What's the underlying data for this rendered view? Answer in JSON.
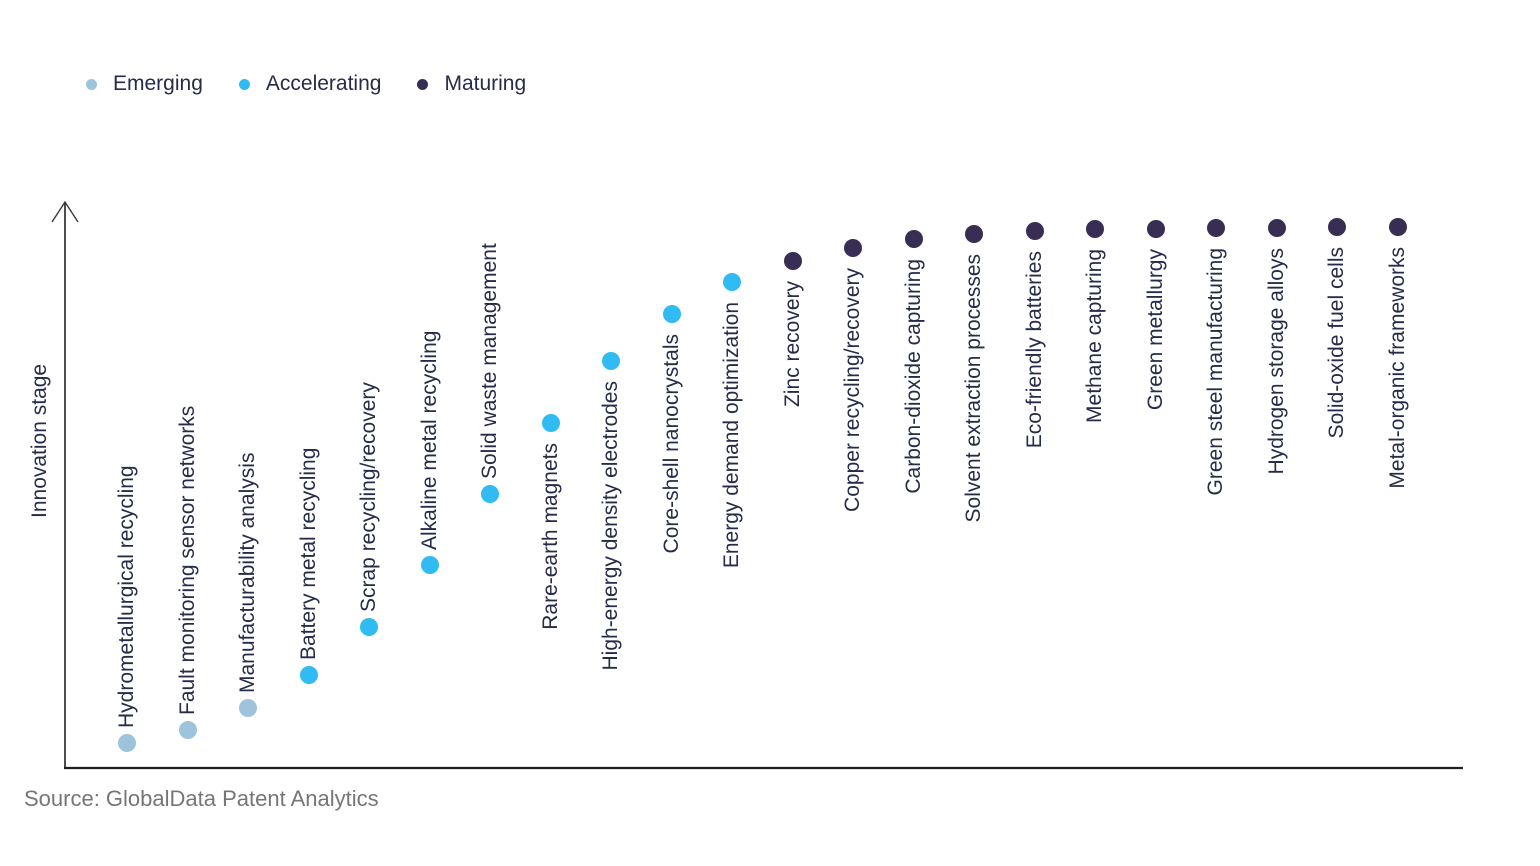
{
  "legend": {
    "items": [
      {
        "label": "Emerging",
        "color": "#9DC4DB"
      },
      {
        "label": "Accelerating",
        "color": "#30BCF2"
      },
      {
        "label": "Maturing",
        "color": "#382D52"
      }
    ]
  },
  "source": "Source: GlobalData Patent Analytics",
  "chart_data": {
    "type": "scatter",
    "title": "",
    "xlabel": "",
    "ylabel": "Innovation stage",
    "grid": false,
    "legend_position": "top-left",
    "y_axis": {
      "style": "arrow",
      "ticks": "none",
      "range_percent": [
        0,
        100
      ]
    },
    "x_axis": {
      "ticks": "none",
      "labels_rotated_degrees": 90
    },
    "stages": [
      "Emerging",
      "Accelerating",
      "Maturing"
    ],
    "stage_colors": {
      "Emerging": "#9DC4DB",
      "Accelerating": "#30BCF2",
      "Maturing": "#382D52"
    },
    "items": [
      {
        "label": "Hydrometallurgical recycling",
        "stage": "Emerging",
        "value": 4.6,
        "label_side": "above"
      },
      {
        "label": "Fault monitoring sensor networks",
        "stage": "Emerging",
        "value": 7.0,
        "label_side": "above"
      },
      {
        "label": "Manufacturability analysis",
        "stage": "Emerging",
        "value": 11.1,
        "label_side": "above"
      },
      {
        "label": "Battery metal recycling",
        "stage": "Accelerating",
        "value": 17.2,
        "label_side": "above"
      },
      {
        "label": "Scrap recycling/recovery",
        "stage": "Accelerating",
        "value": 26.1,
        "label_side": "above"
      },
      {
        "label": "Alkaline metal recycling",
        "stage": "Accelerating",
        "value": 37.5,
        "label_side": "above"
      },
      {
        "label": "Solid waste management",
        "stage": "Accelerating",
        "value": 50.6,
        "label_side": "above"
      },
      {
        "label": "Rare-earth magnets",
        "stage": "Accelerating",
        "value": 63.8,
        "label_side": "below"
      },
      {
        "label": "High-energy density electrodes",
        "stage": "Accelerating",
        "value": 75.2,
        "label_side": "below"
      },
      {
        "label": "Core-shell nanocrystals",
        "stage": "Accelerating",
        "value": 83.9,
        "label_side": "below"
      },
      {
        "label": "Energy demand optimization",
        "stage": "Accelerating",
        "value": 89.8,
        "label_side": "below"
      },
      {
        "label": "Zinc recovery",
        "stage": "Maturing",
        "value": 93.7,
        "label_side": "below"
      },
      {
        "label": "Copper recycling/recovery",
        "stage": "Maturing",
        "value": 96.1,
        "label_side": "below"
      },
      {
        "label": "Carbon-dioxide capturing",
        "stage": "Maturing",
        "value": 97.8,
        "label_side": "below"
      },
      {
        "label": "Solvent extraction processes",
        "stage": "Maturing",
        "value": 98.7,
        "label_side": "below"
      },
      {
        "label": "Eco-friendly batteries",
        "stage": "Maturing",
        "value": 99.3,
        "label_side": "below"
      },
      {
        "label": "Methane capturing",
        "stage": "Maturing",
        "value": 99.6,
        "label_side": "below"
      },
      {
        "label": "Green metallurgy",
        "stage": "Maturing",
        "value": 99.6,
        "label_side": "below"
      },
      {
        "label": "Green steel manufacturing",
        "stage": "Maturing",
        "value": 99.8,
        "label_side": "below"
      },
      {
        "label": "Hydrogen storage alloys",
        "stage": "Maturing",
        "value": 99.8,
        "label_side": "below"
      },
      {
        "label": "Solid-oxide fuel cells",
        "stage": "Maturing",
        "value": 100,
        "label_side": "below"
      },
      {
        "label": "Metal-organic frameworks",
        "stage": "Maturing",
        "value": 100,
        "label_side": "below"
      }
    ]
  }
}
